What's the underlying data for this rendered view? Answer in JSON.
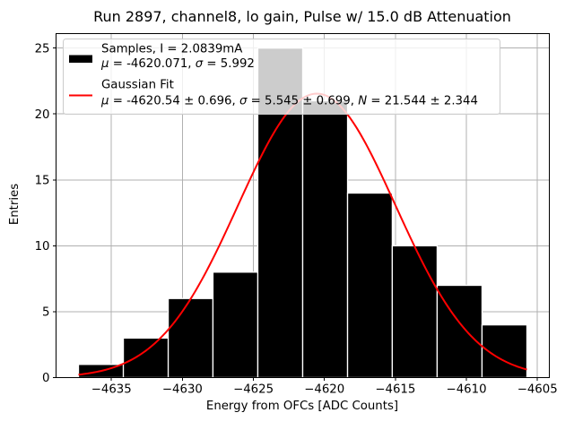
{
  "title": "Run 2897, channel8, lo gain, Pulse w/ 15.0 dB Attenuation",
  "chart_data": {
    "type": "bar",
    "subtype": "histogram-with-gaussian-fit",
    "title": "Run 2897, channel8, lo gain, Pulse w/ 15.0 dB Attenuation",
    "xlabel": "Energy from OFCs [ADC Counts]",
    "ylabel": "Entries",
    "xlim": [
      -4638.9,
      -4604.16
    ],
    "ylim": [
      0,
      26.1
    ],
    "grid": true,
    "xticks": [
      -4635,
      -4630,
      -4625,
      -4620,
      -4615,
      -4610,
      -4605
    ],
    "xtick_labels": [
      "−4635",
      "−4630",
      "−4625",
      "−4620",
      "−4615",
      "−4610",
      "−4605"
    ],
    "yticks": [
      0,
      5,
      10,
      15,
      20,
      25
    ],
    "ytick_labels": [
      "0",
      "5",
      "10",
      "15",
      "20",
      "25"
    ],
    "bin_edges": [
      -4637.32,
      -4634.16,
      -4631.0,
      -4627.85,
      -4624.69,
      -4621.53,
      -4618.37,
      -4615.22,
      -4612.06,
      -4608.9,
      -4605.74
    ],
    "counts": [
      1,
      3,
      6,
      8,
      25,
      21,
      14,
      10,
      7,
      4
    ],
    "gaussian_fit": {
      "mu": -4620.54,
      "mu_err": 0.696,
      "sigma": 5.545,
      "sigma_err": 0.699,
      "N": 21.544,
      "N_err": 2.344,
      "x_start": -4637.32,
      "x_end": -4605.74
    },
    "samples_stats": {
      "current": "2.0839mA",
      "mu": -4620.071,
      "sigma": 5.992
    },
    "legend": [
      {
        "swatch": "patch",
        "color": "#000000",
        "lines": [
          "Samples, I = 2.0839mA",
          "μ = -4620.071, σ = 5.992"
        ]
      },
      {
        "swatch": "line",
        "color": "#ff0000",
        "lines": [
          "Gaussian Fit",
          "μ = -4620.54 ± 0.696, σ = 5.545 ± 0.699, N = 21.544 ± 2.344"
        ]
      }
    ],
    "colors": {
      "bar_fill": "#000000",
      "bar_edge": "#ffffff",
      "fit_line": "#ff0000",
      "grid": "#b0b0b0",
      "frame": "#000000",
      "legend_edge": "#cccccc",
      "legend_face": "rgba(255,255,255,0.8)"
    }
  }
}
